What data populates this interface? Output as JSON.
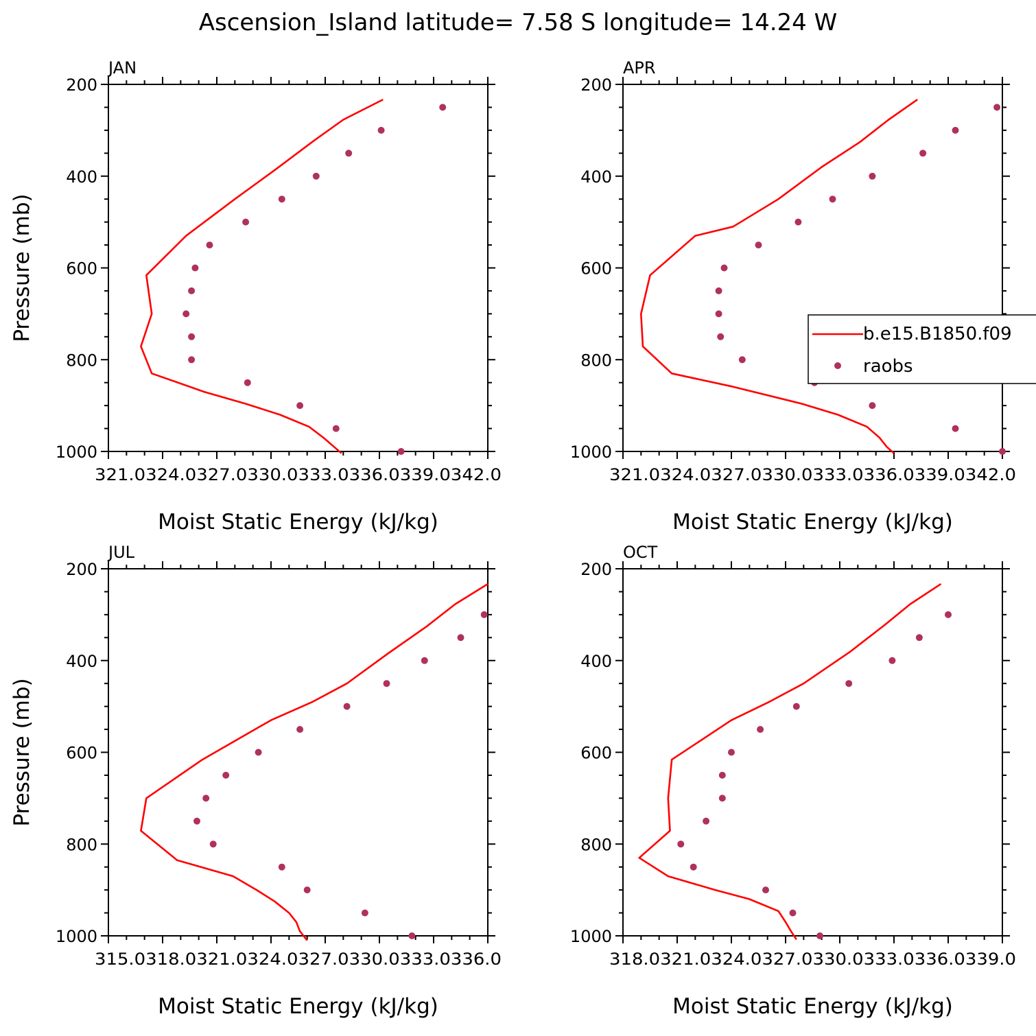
{
  "figure_title": "Ascension_Island  latitude= 7.58 S longitude= 14.24 W",
  "colors": {
    "model": "#ff0000",
    "obs": "#b03060",
    "axis": "#000000"
  },
  "legend": {
    "model_label": "b.e15.B1850.f09",
    "obs_label": "raobs"
  },
  "chart_data": [
    {
      "type": "line",
      "panel": "JAN",
      "xlabel": "Moist Static Energy (kJ/kg)",
      "ylabel": "Pressure (mb)",
      "xlim": [
        321.0,
        342.0
      ],
      "ylim": [
        1000,
        200
      ],
      "xticks": [
        321.0,
        324.0,
        327.0,
        330.0,
        333.0,
        336.0,
        339.0,
        342.0
      ],
      "xtick_labels": "321.0324.0327.0330.0333.0336.0339.0342.0",
      "yticks": [
        200,
        400,
        600,
        800,
        1000
      ],
      "series": [
        {
          "name": "b.e15.B1850.f09",
          "kind": "line",
          "points": [
            [
              336.2,
              233
            ],
            [
              334.0,
              277
            ],
            [
              332.4,
              322
            ],
            [
              330.3,
              384
            ],
            [
              328.0,
              450
            ],
            [
              325.3,
              530
            ],
            [
              323.1,
              616
            ],
            [
              323.4,
              700
            ],
            [
              322.8,
              771
            ],
            [
              323.4,
              830
            ],
            [
              326.3,
              870
            ],
            [
              328.6,
              896
            ],
            [
              330.5,
              920
            ],
            [
              332.1,
              946
            ],
            [
              332.9,
              970
            ],
            [
              333.9,
              1004
            ]
          ]
        },
        {
          "name": "raobs",
          "kind": "scatter",
          "points": [
            [
              339.5,
              250
            ],
            [
              336.1,
              300
            ],
            [
              334.3,
              350
            ],
            [
              332.5,
              400
            ],
            [
              330.6,
              450
            ],
            [
              328.6,
              500
            ],
            [
              326.6,
              550
            ],
            [
              325.8,
              600
            ],
            [
              325.6,
              650
            ],
            [
              325.3,
              700
            ],
            [
              325.6,
              750
            ],
            [
              325.6,
              800
            ],
            [
              328.7,
              850
            ],
            [
              331.6,
              900
            ],
            [
              333.6,
              950
            ],
            [
              337.2,
              1000
            ]
          ]
        }
      ]
    },
    {
      "type": "line",
      "panel": "APR",
      "xlabel": "Moist Static Energy (kJ/kg)",
      "ylabel": "",
      "xlim": [
        321.0,
        342.0
      ],
      "ylim": [
        1000,
        200
      ],
      "xticks": [
        321.0,
        324.0,
        327.0,
        330.0,
        333.0,
        336.0,
        339.0,
        342.0
      ],
      "xtick_labels": "321.0324.0327.0330.0333.0336.0339.0342.0",
      "yticks": [
        200,
        400,
        600,
        800,
        1000
      ],
      "series": [
        {
          "name": "b.e15.B1850.f09",
          "kind": "line",
          "points": [
            [
              337.3,
              233
            ],
            [
              335.7,
              277
            ],
            [
              334.1,
              326
            ],
            [
              332.0,
              380
            ],
            [
              329.6,
              450
            ],
            [
              327.1,
              510
            ],
            [
              325.0,
              530
            ],
            [
              322.5,
              616
            ],
            [
              322.0,
              700
            ],
            [
              322.1,
              771
            ],
            [
              323.7,
              830
            ],
            [
              327.1,
              859
            ],
            [
              330.9,
              896
            ],
            [
              332.9,
              920
            ],
            [
              334.5,
              946
            ],
            [
              335.2,
              970
            ],
            [
              335.6,
              990
            ],
            [
              336.0,
              1004
            ]
          ]
        },
        {
          "name": "raobs",
          "kind": "scatter",
          "points": [
            [
              341.7,
              250
            ],
            [
              339.4,
              300
            ],
            [
              337.6,
              350
            ],
            [
              334.8,
              400
            ],
            [
              332.6,
              450
            ],
            [
              330.7,
              500
            ],
            [
              328.5,
              550
            ],
            [
              326.6,
              600
            ],
            [
              326.3,
              650
            ],
            [
              326.3,
              700
            ],
            [
              326.4,
              750
            ],
            [
              327.6,
              800
            ],
            [
              331.6,
              850
            ],
            [
              334.8,
              900
            ],
            [
              339.4,
              950
            ],
            [
              342.0,
              1000
            ]
          ]
        }
      ]
    },
    {
      "type": "line",
      "panel": "JUL",
      "xlabel": "Moist Static Energy (kJ/kg)",
      "ylabel": "Pressure (mb)",
      "xlim": [
        315.0,
        336.0
      ],
      "ylim": [
        1000,
        200
      ],
      "xticks": [
        315.0,
        318.0,
        321.0,
        324.0,
        327.0,
        330.0,
        333.0,
        336.0
      ],
      "xtick_labels": "315.0318.0321.0324.0327.0330.0333.0336.0",
      "yticks": [
        200,
        400,
        600,
        800,
        1000
      ],
      "series": [
        {
          "name": "b.e15.B1850.f09",
          "kind": "line",
          "points": [
            [
              336.0,
              233
            ],
            [
              334.2,
              277
            ],
            [
              332.6,
              326
            ],
            [
              330.5,
              384
            ],
            [
              328.2,
              450
            ],
            [
              326.3,
              490
            ],
            [
              324.0,
              530
            ],
            [
              320.2,
              616
            ],
            [
              317.1,
              700
            ],
            [
              316.8,
              771
            ],
            [
              318.8,
              835
            ],
            [
              321.9,
              870
            ],
            [
              323.2,
              900
            ],
            [
              324.2,
              925
            ],
            [
              325.0,
              950
            ],
            [
              325.4,
              970
            ],
            [
              325.6,
              990
            ],
            [
              326.0,
              1010
            ]
          ]
        },
        {
          "name": "raobs",
          "kind": "scatter",
          "points": [
            [
              335.8,
              300
            ],
            [
              334.5,
              350
            ],
            [
              332.5,
              400
            ],
            [
              330.4,
              450
            ],
            [
              328.2,
              500
            ],
            [
              325.6,
              550
            ],
            [
              323.3,
              600
            ],
            [
              321.5,
              650
            ],
            [
              320.4,
              700
            ],
            [
              319.9,
              750
            ],
            [
              320.8,
              800
            ],
            [
              324.6,
              850
            ],
            [
              326.0,
              900
            ],
            [
              329.2,
              950
            ],
            [
              331.8,
              1000
            ]
          ]
        }
      ]
    },
    {
      "type": "line",
      "panel": "OCT",
      "xlabel": "Moist Static Energy (kJ/kg)",
      "ylabel": "",
      "xlim": [
        318.0,
        339.0
      ],
      "ylim": [
        1000,
        200
      ],
      "xticks": [
        318.0,
        321.0,
        324.0,
        327.0,
        330.0,
        333.0,
        336.0,
        339.0
      ],
      "xtick_labels": "318.0321.0324.0327.0330.0333.0336.0339.0",
      "yticks": [
        200,
        400,
        600,
        800,
        1000
      ],
      "series": [
        {
          "name": "b.e15.B1850.f09",
          "kind": "line",
          "points": [
            [
              335.6,
              233
            ],
            [
              333.9,
              277
            ],
            [
              332.5,
              322
            ],
            [
              330.6,
              380
            ],
            [
              328.0,
              450
            ],
            [
              326.1,
              490
            ],
            [
              324.0,
              530
            ],
            [
              320.7,
              616
            ],
            [
              320.5,
              700
            ],
            [
              320.6,
              771
            ],
            [
              318.9,
              830
            ],
            [
              320.5,
              870
            ],
            [
              323.1,
              900
            ],
            [
              325.0,
              920
            ],
            [
              326.6,
              946
            ],
            [
              327.0,
              970
            ],
            [
              327.3,
              990
            ],
            [
              327.6,
              1008
            ]
          ]
        },
        {
          "name": "raobs",
          "kind": "scatter",
          "points": [
            [
              336.0,
              300
            ],
            [
              334.4,
              350
            ],
            [
              332.9,
              400
            ],
            [
              330.5,
              450
            ],
            [
              327.6,
              500
            ],
            [
              325.6,
              550
            ],
            [
              324.0,
              600
            ],
            [
              323.5,
              650
            ],
            [
              323.5,
              700
            ],
            [
              322.6,
              750
            ],
            [
              321.2,
              800
            ],
            [
              321.9,
              850
            ],
            [
              325.9,
              900
            ],
            [
              327.4,
              950
            ],
            [
              328.9,
              1000
            ]
          ]
        }
      ]
    }
  ]
}
